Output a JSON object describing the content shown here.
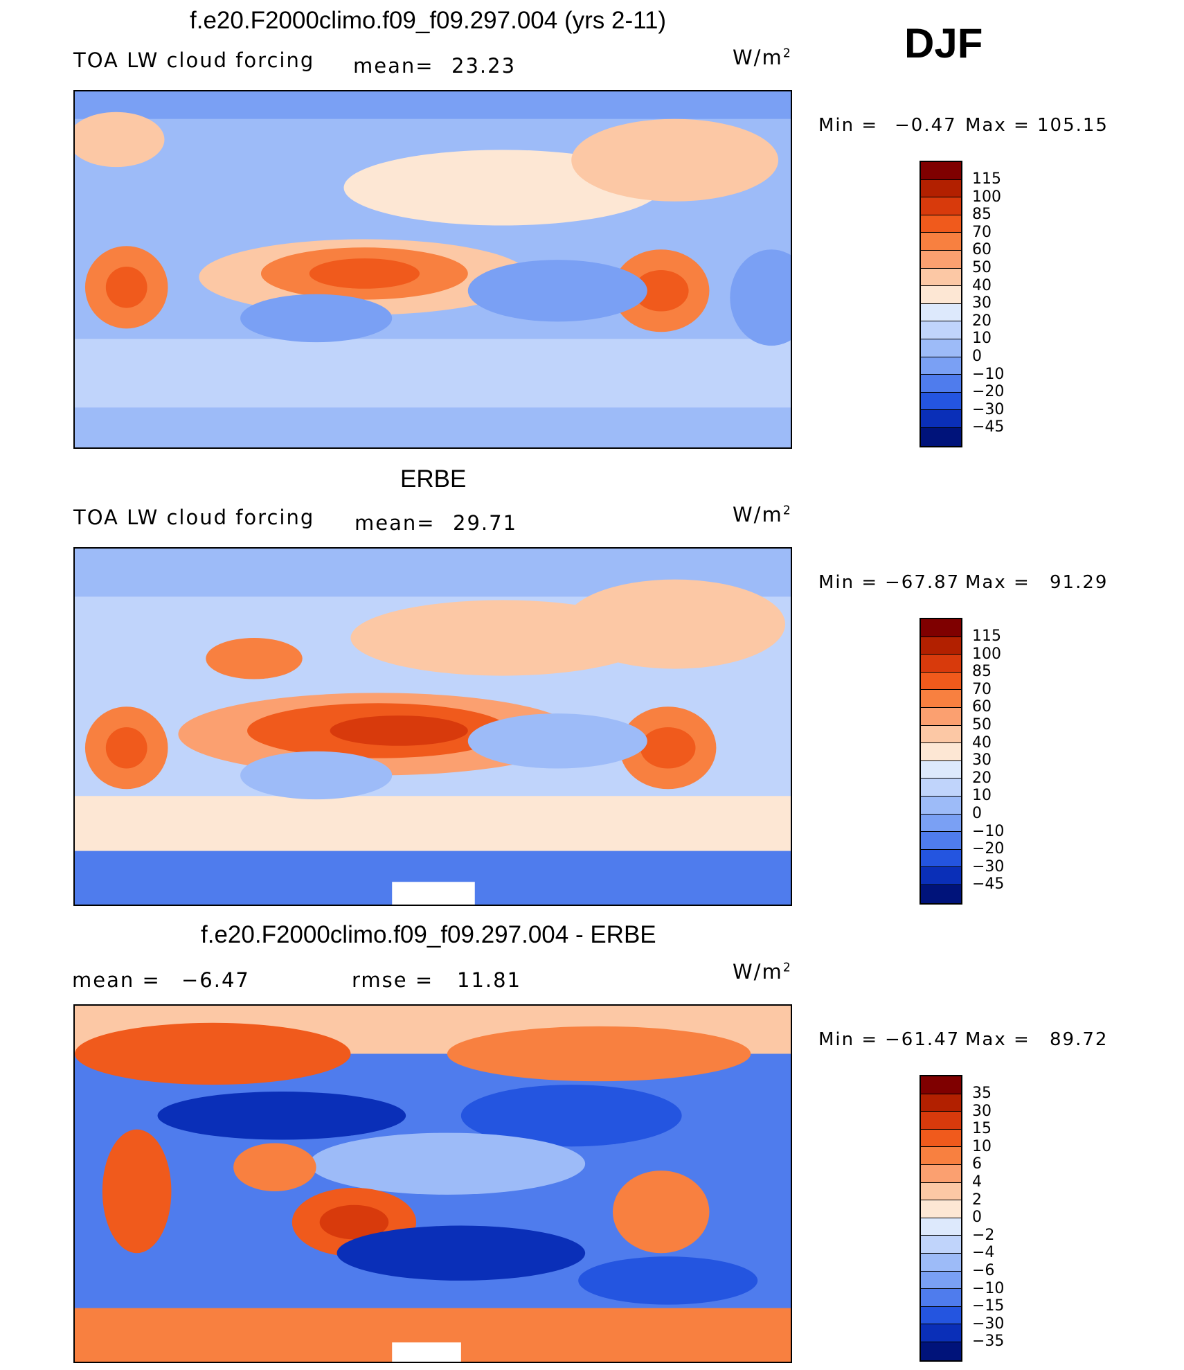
{
  "season": "DJF",
  "panels": [
    {
      "title": "f.e20.F2000climo.f09_f09.297.004 (yrs 2-11)",
      "variable": "TOA LW cloud forcing",
      "stat1_label": "mean=",
      "stat1_value": "23.23",
      "stat2_label": "",
      "stat2_value": "",
      "units_base": "W/m",
      "units_exp": "2",
      "min_label": "Min  =",
      "min_value": "−0.47",
      "max_label": "Max  =",
      "max_value": "105.15",
      "colorbar_labels": [
        "115",
        "100",
        "85",
        "70",
        "60",
        "50",
        "40",
        "30",
        "20",
        "10",
        "0",
        "−10",
        "−20",
        "−30",
        "−45"
      ]
    },
    {
      "title": "ERBE",
      "variable": "TOA LW cloud forcing",
      "stat1_label": "mean=",
      "stat1_value": "29.71",
      "stat2_label": "",
      "stat2_value": "",
      "units_base": "W/m",
      "units_exp": "2",
      "min_label": "Min  =",
      "min_value": "−67.87",
      "max_label": "Max  =",
      "max_value": "91.29",
      "colorbar_labels": [
        "115",
        "100",
        "85",
        "70",
        "60",
        "50",
        "40",
        "30",
        "20",
        "10",
        "0",
        "−10",
        "−20",
        "−30",
        "−45"
      ]
    },
    {
      "title": "f.e20.F2000climo.f09_f09.297.004 - ERBE",
      "variable": "",
      "stat1_label": "mean  =",
      "stat1_value": "−6.47",
      "stat2_label": "rmse  =",
      "stat2_value": "11.81",
      "units_base": "W/m",
      "units_exp": "2",
      "min_label": "Min  =",
      "min_value": "−61.47",
      "max_label": "Max  =",
      "max_value": "89.72",
      "colorbar_labels": [
        "35",
        "30",
        "15",
        "10",
        "6",
        "4",
        "2",
        "0",
        "−2",
        "−4",
        "−6",
        "−10",
        "−15",
        "−30",
        "−35"
      ]
    }
  ],
  "colors": {
    "colorbar": [
      "#7f0000",
      "#b22000",
      "#d83a0c",
      "#f05a1c",
      "#f88040",
      "#fba070",
      "#fcc8a5",
      "#fde7d4",
      "#dde9fc",
      "#c0d4fb",
      "#9dbbf8",
      "#7aa0f4",
      "#4f7ced",
      "#2455e0",
      "#0a2fb8",
      "#00137a"
    ]
  },
  "chart_data": [
    {
      "type": "heatmap",
      "title": "f.e20.F2000climo.f09_f09.297.004 (yrs 2-11)",
      "subtitle": "TOA LW cloud forcing",
      "units": "W/m2",
      "mean": 23.23,
      "min": -0.47,
      "max": 105.15,
      "color_levels": [
        -45,
        -30,
        -20,
        -10,
        0,
        10,
        20,
        30,
        40,
        50,
        60,
        70,
        85,
        100,
        115
      ]
    },
    {
      "type": "heatmap",
      "title": "ERBE",
      "subtitle": "TOA LW cloud forcing",
      "units": "W/m2",
      "mean": 29.71,
      "min": -67.87,
      "max": 91.29,
      "color_levels": [
        -45,
        -30,
        -20,
        -10,
        0,
        10,
        20,
        30,
        40,
        50,
        60,
        70,
        85,
        100,
        115
      ]
    },
    {
      "type": "heatmap",
      "title": "f.e20.F2000climo.f09_f09.297.004 - ERBE",
      "subtitle": "",
      "units": "W/m2",
      "mean": -6.47,
      "rmse": 11.81,
      "min": -61.47,
      "max": 89.72,
      "color_levels": [
        -35,
        -30,
        -15,
        -10,
        -6,
        -4,
        -2,
        0,
        2,
        4,
        6,
        10,
        15,
        30,
        35
      ]
    }
  ]
}
